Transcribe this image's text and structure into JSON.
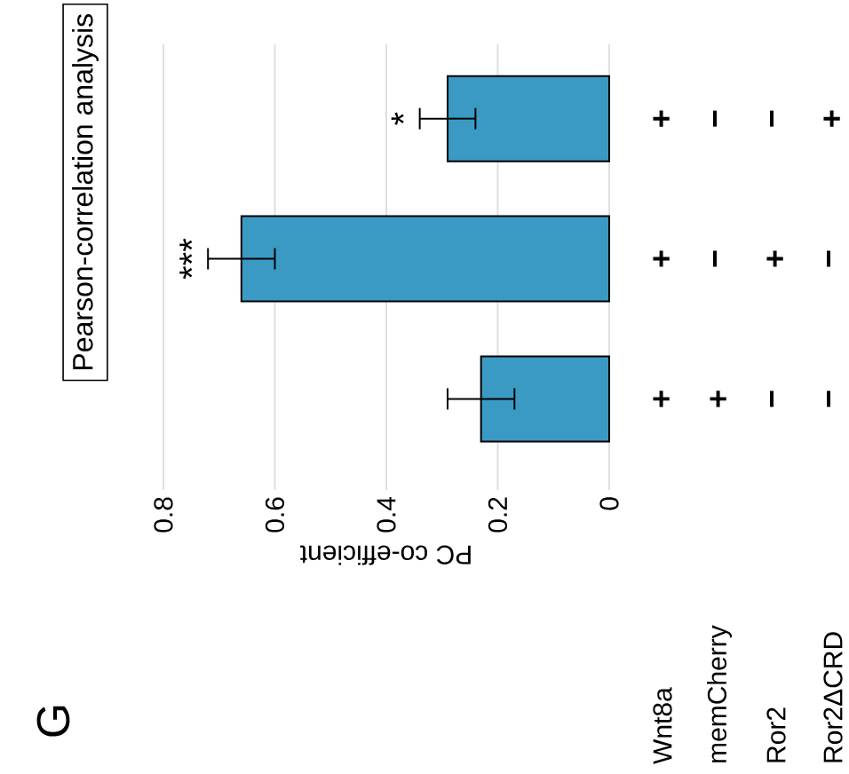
{
  "chart_data": {
    "type": "bar",
    "orientation": "horizontal",
    "title": "Pearson-correlation analysis",
    "xlabel": "PC co-efficient",
    "categories": [
      null,
      null,
      null
    ],
    "values": [
      0.29,
      0.66,
      0.23
    ],
    "errors": [
      0.05,
      0.06,
      0.06
    ],
    "value_labels": [
      "*",
      "***",
      null
    ],
    "color": "#3a9ac4",
    "xlim": [
      0.8,
      0
    ],
    "xticks": [
      0.8,
      0.6,
      0.4,
      0.2,
      0
    ],
    "grid": "x",
    "annotations": [
      "G",
      "Wnt8a",
      "+",
      "+",
      "+",
      "memCherry",
      "−",
      "−",
      "+",
      "Ror2",
      "−",
      "+",
      "−",
      "Ror2ΔCRD",
      "+",
      "−",
      "−"
    ]
  }
}
